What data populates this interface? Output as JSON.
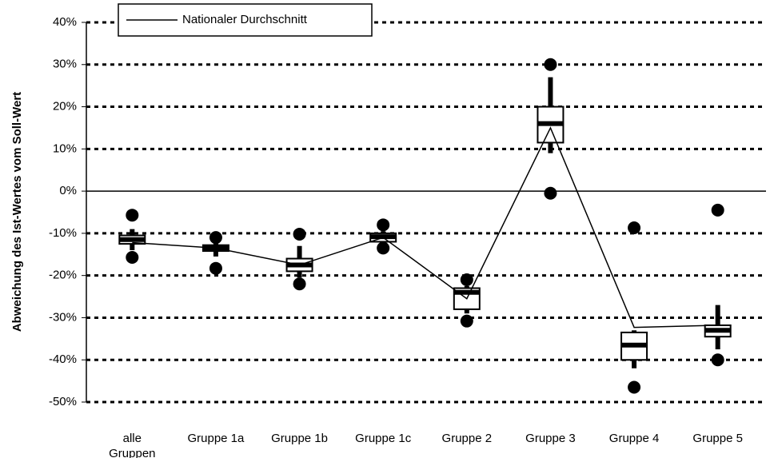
{
  "chart_data": {
    "type": "box",
    "ylabel": "Abweichung des Ist-Wertes vom Soll-Wert",
    "categories": [
      "alle Gruppen",
      "Gruppe 1a",
      "Gruppe 1b",
      "Gruppe 1c",
      "Gruppe 2",
      "Gruppe 3",
      "Gruppe 4",
      "Gruppe 5"
    ],
    "boxes": [
      {
        "whisker_low": -14,
        "q1": -12.5,
        "median": -11.5,
        "q3": -10.5,
        "whisker_high": -9,
        "outliers": [
          -15.7,
          -5.7
        ]
      },
      {
        "whisker_low": -15.5,
        "q1": -14.2,
        "median": -13.5,
        "q3": -12.8,
        "whisker_high": -12,
        "outliers": [
          -18.3,
          -11
        ]
      },
      {
        "whisker_low": -20.5,
        "q1": -19,
        "median": -17.5,
        "q3": -16,
        "whisker_high": -13,
        "outliers": [
          -22,
          -10.2
        ]
      },
      {
        "whisker_low": -12.5,
        "q1": -12,
        "median": -10.8,
        "q3": -10,
        "whisker_high": -9.5,
        "outliers": [
          -13.5,
          -8
        ]
      },
      {
        "whisker_low": -29,
        "q1": -28,
        "median": -24,
        "q3": -23,
        "whisker_high": -22.5,
        "outliers": [
          -30.8,
          -21
        ]
      },
      {
        "whisker_low": 9,
        "q1": 11.5,
        "median": 16,
        "q3": 20,
        "whisker_high": 27,
        "outliers": [
          -0.5,
          30
        ]
      },
      {
        "whisker_low": -42,
        "q1": -40,
        "median": -36.5,
        "q3": -33.5,
        "whisker_high": -33,
        "outliers": [
          -46.5,
          -8.7
        ]
      },
      {
        "whisker_low": -37.5,
        "q1": -34.5,
        "median": -33,
        "q3": -31.8,
        "whisker_high": -27,
        "outliers": [
          -40,
          -4.5
        ]
      }
    ],
    "series": [
      {
        "name": "Nationaler Durchschnitt",
        "color": "#000000",
        "values": [
          -12.2,
          -13.5,
          -17.5,
          -11,
          -25.5,
          15,
          -32.3,
          -31.8
        ]
      }
    ],
    "ylim": [
      -50,
      40
    ],
    "yticks": [
      {
        "value": -50,
        "label": "-50%"
      },
      {
        "value": -40,
        "label": "-40%"
      },
      {
        "value": -30,
        "label": "-30%"
      },
      {
        "value": -20,
        "label": "-20%"
      },
      {
        "value": -10,
        "label": "-10%"
      },
      {
        "value": 0,
        "label": "0%"
      },
      {
        "value": 10,
        "label": "10%"
      },
      {
        "value": 20,
        "label": "20%"
      },
      {
        "value": 30,
        "label": "30%"
      },
      {
        "value": 40,
        "label": "40%"
      }
    ],
    "grid": true
  }
}
